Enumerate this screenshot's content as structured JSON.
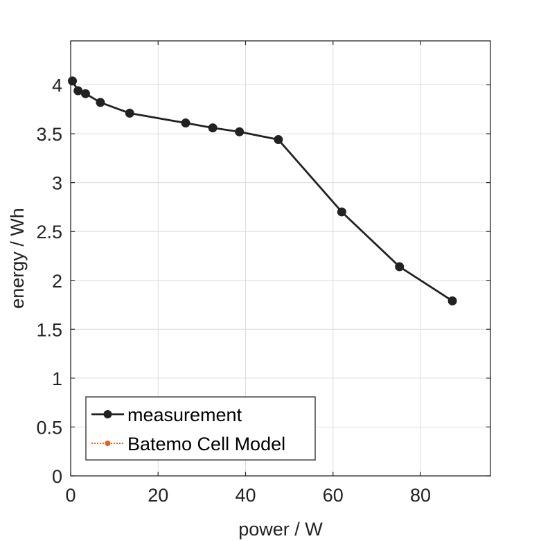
{
  "chart_data": {
    "type": "line",
    "title": "",
    "xlabel": "power / W",
    "ylabel": "energy / Wh",
    "xlim": [
      0,
      96
    ],
    "ylim": [
      0,
      4.45
    ],
    "xticks": [
      0,
      20,
      40,
      60,
      80
    ],
    "xtick_labels": [
      "0",
      "20",
      "40",
      "60",
      "80"
    ],
    "yticks": [
      0,
      0.5,
      1,
      1.5,
      2,
      2.5,
      3,
      3.5,
      4
    ],
    "ytick_labels": [
      "0",
      "0.5",
      "1",
      "1.5",
      "2",
      "2.5",
      "3",
      "3.5",
      "4"
    ],
    "grid": true,
    "legend_position": "bottom-left",
    "series": [
      {
        "name": "measurement",
        "color": "#222222",
        "style": "solid line with filled circle markers",
        "points": [
          {
            "x": 0.4,
            "y": 4.04
          },
          {
            "x": 1.7,
            "y": 3.94
          },
          {
            "x": 3.4,
            "y": 3.91
          },
          {
            "x": 6.8,
            "y": 3.82
          },
          {
            "x": 13.5,
            "y": 3.71
          },
          {
            "x": 26.3,
            "y": 3.61
          },
          {
            "x": 32.5,
            "y": 3.56
          },
          {
            "x": 38.6,
            "y": 3.52
          },
          {
            "x": 47.5,
            "y": 3.44
          },
          {
            "x": 62.0,
            "y": 2.7
          },
          {
            "x": 75.2,
            "y": 2.14
          },
          {
            "x": 87.3,
            "y": 1.79
          }
        ]
      },
      {
        "name": "Batemo Cell Model",
        "color": "#e8601c",
        "style": "dotted line with small circle markers",
        "points": []
      }
    ]
  }
}
